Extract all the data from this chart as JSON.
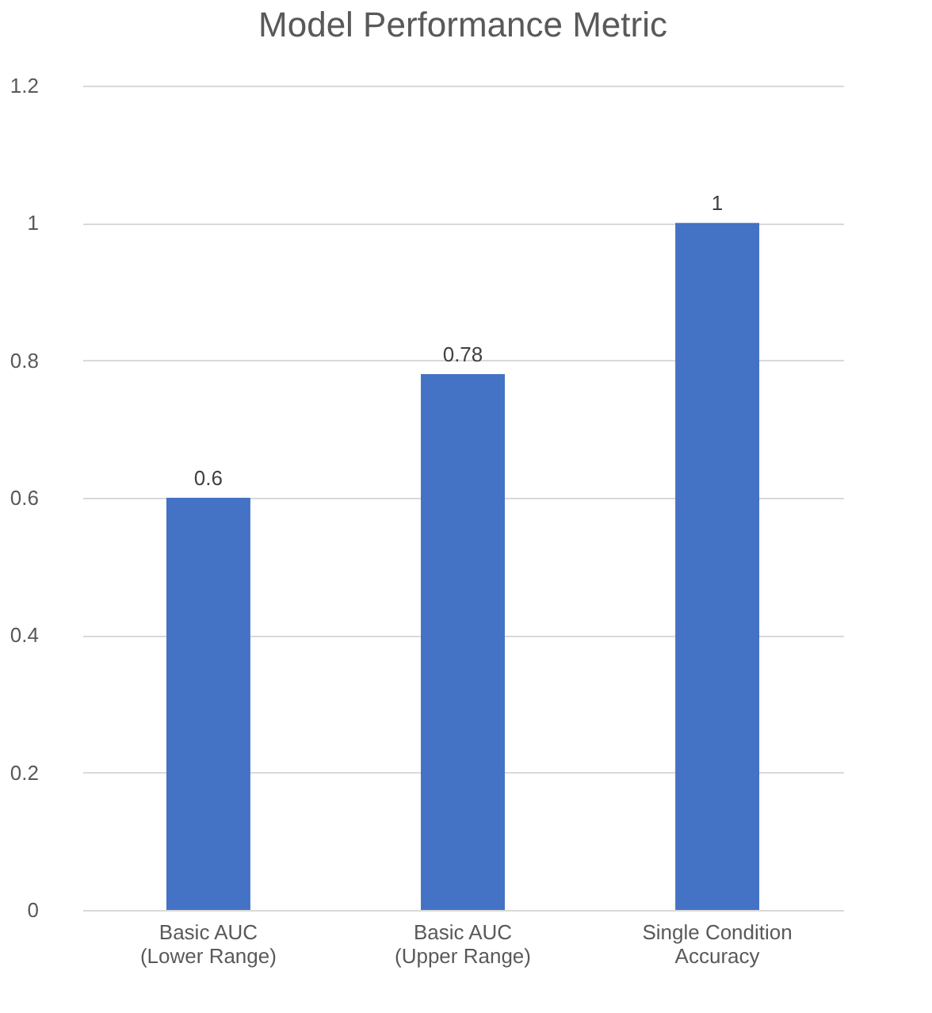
{
  "chart_data": {
    "type": "bar",
    "title": "Model Performance Metric",
    "categories": [
      "Basic AUC (Lower Range)",
      "Basic AUC (Upper Range)",
      "Single Condition Accuracy"
    ],
    "values": [
      0.6,
      0.78,
      1
    ],
    "color": "#4472c4",
    "ylim": [
      0,
      1.2
    ],
    "yticks": [
      0,
      0.2,
      0.4,
      0.6,
      0.8,
      1,
      1.2
    ],
    "grid": "y",
    "data_labels": true
  }
}
